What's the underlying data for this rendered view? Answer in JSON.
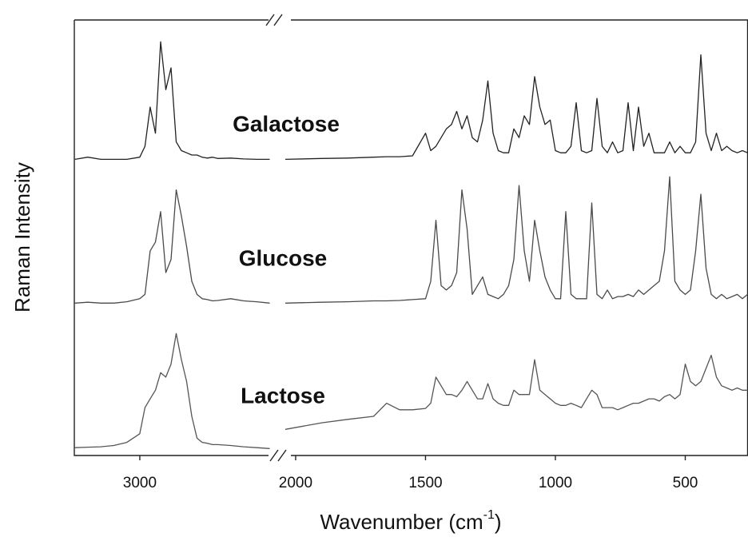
{
  "chart_data": {
    "type": "line",
    "y_label": "Raman Intensity",
    "x_label": [
      "Wavenumber (cm",
      "-1",
      ")"
    ],
    "x_panels": [
      {
        "xlim": [
          3252,
          2477
        ],
        "xticks": [
          3000
        ]
      },
      {
        "xlim": [
          2046,
          260
        ],
        "xticks": [
          2000,
          1500,
          1000,
          500
        ]
      }
    ],
    "ylim": [
      0,
      100
    ],
    "x": [
      3250,
      3200,
      3150,
      3100,
      3050,
      3000,
      2980,
      2960,
      2940,
      2920,
      2900,
      2880,
      2860,
      2840,
      2820,
      2800,
      2780,
      2760,
      2740,
      2720,
      2700,
      2650,
      2600,
      2550,
      2500,
      2300,
      2040,
      1900,
      1800,
      1700,
      1650,
      1600,
      1550,
      1500,
      1480,
      1460,
      1440,
      1420,
      1400,
      1380,
      1360,
      1340,
      1320,
      1300,
      1280,
      1260,
      1240,
      1220,
      1200,
      1180,
      1160,
      1140,
      1120,
      1100,
      1080,
      1060,
      1040,
      1020,
      1000,
      980,
      960,
      940,
      920,
      900,
      880,
      860,
      840,
      820,
      800,
      780,
      760,
      740,
      720,
      700,
      680,
      660,
      640,
      620,
      600,
      580,
      560,
      540,
      520,
      500,
      480,
      460,
      440,
      420,
      400,
      380,
      360,
      340,
      320,
      300,
      280,
      260
    ],
    "series": [
      {
        "name": "Galactose",
        "color": "#222222",
        "values": [
          68,
          68.5,
          68,
          68,
          68,
          68.5,
          71,
          80,
          74,
          95,
          84,
          89,
          72,
          70,
          69.5,
          69,
          69,
          68.5,
          68.3,
          68.5,
          68.2,
          68.3,
          68.1,
          68,
          68,
          null,
          68,
          68.2,
          68.3,
          68.5,
          68.6,
          68.6,
          68.8,
          74,
          70,
          71,
          73,
          75,
          76,
          79,
          75,
          78,
          73,
          72,
          77,
          86,
          74,
          70,
          69.5,
          69.5,
          75,
          73,
          78,
          76,
          87,
          80,
          76,
          77,
          70,
          69.5,
          69.5,
          71,
          81,
          70,
          69.5,
          70,
          82,
          71,
          69.5,
          72,
          69.5,
          70,
          81,
          70,
          80,
          71,
          74,
          69.5,
          69.5,
          69.5,
          72,
          69.5,
          71,
          69.5,
          69.5,
          72,
          92,
          74,
          70,
          74,
          70,
          71,
          70,
          69.5,
          70,
          69.5
        ]
      },
      {
        "name": "Glucose",
        "color": "#4a4a4a",
        "values": [
          35,
          35.2,
          35,
          35,
          35.3,
          36,
          37,
          47,
          49,
          56,
          42,
          45,
          61,
          55,
          48,
          40,
          37,
          36,
          35.8,
          35.5,
          35.6,
          36,
          35.5,
          35.3,
          35,
          null,
          35,
          35.2,
          35.3,
          35.5,
          35.5,
          35.6,
          35.8,
          36,
          40,
          54,
          39,
          38,
          39,
          42,
          61,
          52,
          37,
          39,
          41,
          37,
          36.5,
          36,
          37,
          39,
          45,
          62,
          47,
          40,
          54,
          47,
          41,
          38,
          36,
          36,
          56,
          37,
          36,
          36,
          36,
          58,
          37,
          36,
          38,
          36,
          36.5,
          36.5,
          37,
          36.5,
          38,
          37,
          38,
          39,
          40,
          47,
          64,
          40,
          38,
          37,
          38,
          47,
          60,
          43,
          37,
          36,
          37,
          36,
          36.5,
          37,
          36,
          37
        ]
      },
      {
        "name": "Lactose",
        "color": "#555555",
        "values": [
          1.8,
          1.9,
          2,
          2.3,
          3,
          5,
          11,
          13,
          15,
          19,
          18,
          21,
          28,
          22,
          17,
          9,
          4,
          3,
          2.8,
          2.5,
          2.5,
          2.3,
          2,
          1.8,
          1.6,
          null,
          6,
          7.5,
          8.3,
          9,
          12,
          10.5,
          10.5,
          10.8,
          12,
          18,
          16,
          14,
          14,
          13.5,
          15,
          17,
          15,
          13,
          13,
          16.5,
          13,
          12,
          11.5,
          11.5,
          15,
          14,
          14,
          14,
          22,
          15,
          14,
          13,
          12,
          11.5,
          11.5,
          12,
          11.5,
          11,
          13,
          15,
          14,
          11,
          11,
          11,
          10.5,
          11,
          11.5,
          12,
          12,
          12.5,
          13,
          13,
          12.5,
          13.5,
          14,
          13,
          14,
          21,
          17,
          16,
          17,
          20,
          23,
          18,
          16,
          15.5,
          15,
          15.5,
          15,
          15
        ]
      }
    ]
  }
}
